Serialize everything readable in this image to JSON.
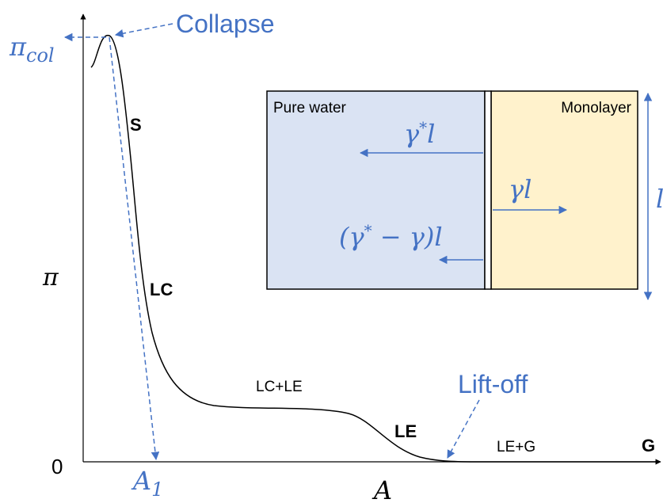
{
  "labels": {
    "collapse": "Collapse",
    "pi_col": {
      "base": "π",
      "sub": "col"
    },
    "S": "S",
    "LC": "LC",
    "LC_LE": "LC+LE",
    "LE": "LE",
    "LE_G": "LE+G",
    "G": "G",
    "lift_off": "Lift-off",
    "pi": "π",
    "zero": "0",
    "A1": {
      "base": "A",
      "sub": "1"
    },
    "A": "A"
  },
  "inset": {
    "pure_water": "Pure water",
    "monolayer": "Monolayer",
    "gamma_star_l": {
      "base": "γ",
      "sup": "*",
      "tail": "l"
    },
    "gamma_l": "γl",
    "diff": {
      "pre": "(γ",
      "sup": "*",
      "post": " − γ)l"
    },
    "length": "l"
  }
}
